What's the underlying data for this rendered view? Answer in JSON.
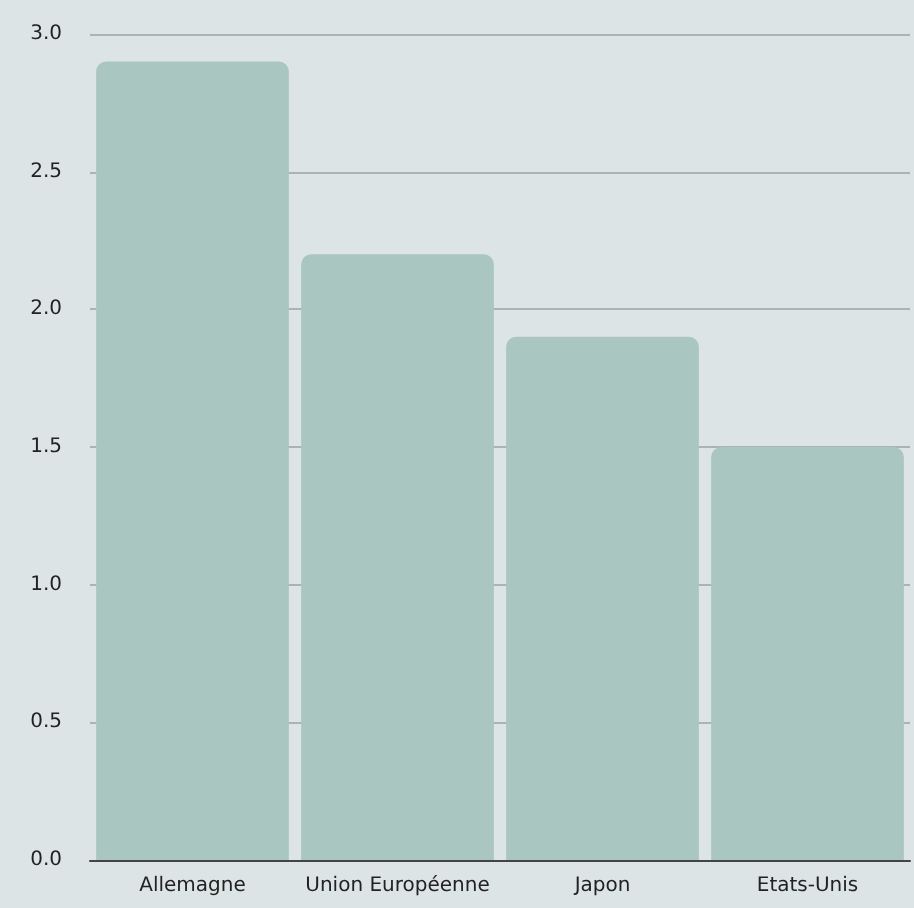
{
  "chart_data": {
    "type": "bar",
    "categories": [
      "Allemagne",
      "Union Européenne",
      "Japon",
      "Etats-Unis"
    ],
    "values": [
      2.9,
      2.2,
      1.9,
      1.5
    ],
    "color": "#aac6c1",
    "ylim": [
      0,
      3
    ],
    "yticks": [
      {
        "value": 0,
        "label": "0.0"
      },
      0.5,
      {
        "value": 1,
        "label": "1.0"
      },
      1.5,
      {
        "value": 2,
        "label": "2.0"
      },
      2.5,
      {
        "value": 3,
        "label": "3.0"
      }
    ],
    "grid": "y"
  }
}
